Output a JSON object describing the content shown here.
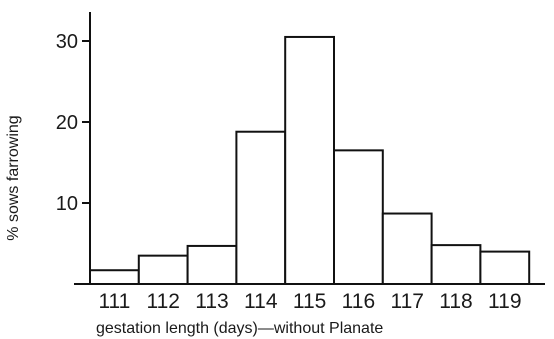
{
  "chart_data": {
    "type": "bar",
    "title": "",
    "xlabel": "gestation length (days)—without Planate",
    "ylabel": "% sows farrowing",
    "categories": [
      "111",
      "112",
      "113",
      "114",
      "115",
      "116",
      "117",
      "118",
      "119"
    ],
    "values": [
      1.7,
      3.5,
      4.7,
      18.8,
      30.5,
      16.5,
      8.7,
      4.8,
      4.0
    ],
    "yticks": [
      "10",
      "20",
      "30"
    ],
    "ylim": [
      0,
      35
    ],
    "grid": false,
    "legend": "none"
  }
}
